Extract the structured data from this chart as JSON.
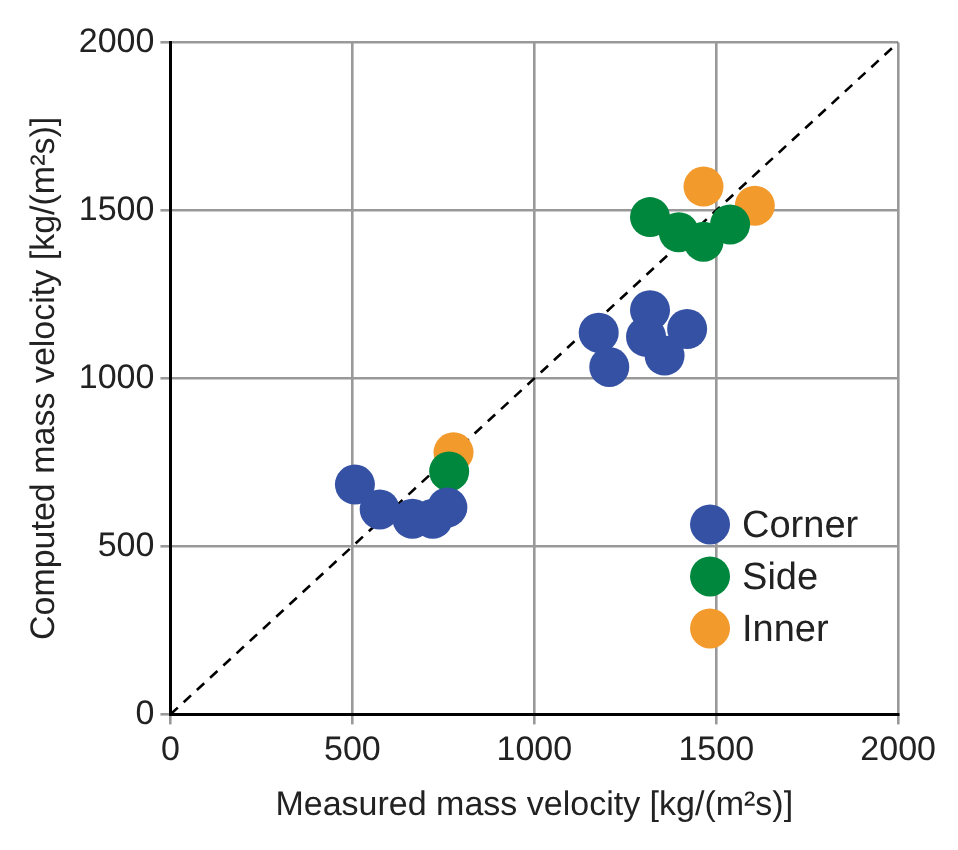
{
  "chart_data": {
    "type": "scatter",
    "xlabel": "Measured mass velocity [kg/(m²s)]",
    "ylabel": "Computed mass velocity [kg/(m²s)]",
    "xlim": [
      0,
      2000
    ],
    "ylim": [
      0,
      2000
    ],
    "xticks": [
      0,
      500,
      1000,
      1500,
      2000
    ],
    "yticks": [
      0,
      500,
      1000,
      1500,
      2000
    ],
    "grid": true,
    "legend": "bottom right",
    "marker": "circle",
    "series": [
      {
        "name": "Corner",
        "color": "#3451a4",
        "x": [
          507,
          575,
          665,
          721,
          761,
          1177,
          1206,
          1318,
          1307,
          1358,
          1420
        ],
        "values": [
          684,
          610,
          582,
          582,
          616,
          1136,
          1034,
          1203,
          1124,
          1068,
          1147
        ]
      },
      {
        "name": "Side",
        "color": "#00873e",
        "x": [
          766,
          1318,
          1397,
          1465,
          1538
        ],
        "values": [
          723,
          1480,
          1435,
          1407,
          1458
        ]
      },
      {
        "name": "Inner",
        "color": "#f39a2d",
        "x": [
          778,
          1465,
          1606
        ],
        "values": [
          780,
          1571,
          1514
        ]
      },
      {
        "type": "line",
        "color": "#000000",
        "line_style": "dashed",
        "marker": "none",
        "x": [
          0,
          2000
        ],
        "values": [
          0,
          2000
        ]
      }
    ]
  }
}
